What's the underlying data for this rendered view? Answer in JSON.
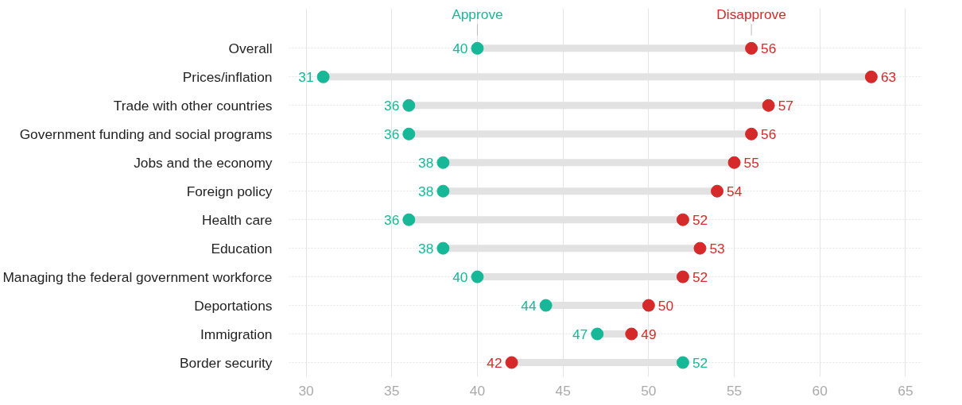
{
  "chart_data": {
    "type": "scatter",
    "orientation": "horizontal",
    "categories": [
      "Overall",
      "Prices/inflation",
      "Trade with other countries",
      "Government funding and social programs",
      "Jobs and the economy",
      "Foreign policy",
      "Health care",
      "Education",
      "Managing the federal government workforce",
      "Deportations",
      "Immigration",
      "Border security"
    ],
    "series": [
      {
        "name": "Approve",
        "color": "#17b897",
        "values": [
          40,
          31,
          36,
          36,
          38,
          38,
          36,
          38,
          40,
          44,
          47,
          52
        ]
      },
      {
        "name": "Disapprove",
        "color": "#d42a2a",
        "values": [
          56,
          63,
          57,
          56,
          55,
          54,
          52,
          53,
          52,
          50,
          49,
          42
        ]
      }
    ],
    "xlim": [
      29,
      66
    ],
    "xticks": [
      30,
      35,
      40,
      45,
      50,
      55,
      60,
      65
    ],
    "grid": true,
    "marker": "circle",
    "data_labels": true
  }
}
